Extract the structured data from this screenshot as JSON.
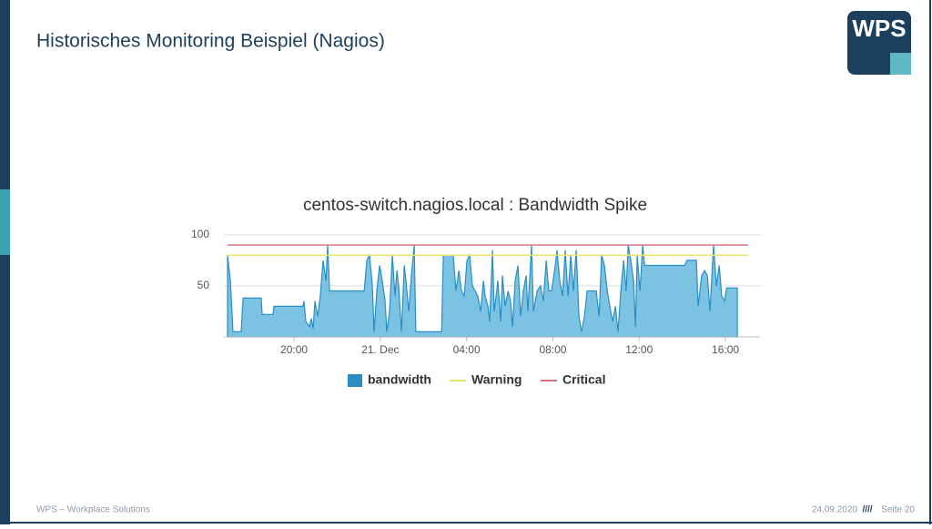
{
  "slide": {
    "title": "Historisches Monitoring Beispiel (Nagios)",
    "logo": "WPS",
    "footer_left": "WPS – Workplace Solutions",
    "date": "24.09.2020",
    "separator": "////",
    "page": "Seite 20"
  },
  "chart_data": {
    "type": "area",
    "title": "centos-switch.nagios.local : Bandwidth Spike",
    "xlim": [
      16.75,
      41.6
    ],
    "xticks": [
      {
        "value": 20,
        "label": "20:00"
      },
      {
        "value": 24,
        "label": "21. Dec"
      },
      {
        "value": 28,
        "label": "04:00"
      },
      {
        "value": 32,
        "label": "08:00"
      },
      {
        "value": 36,
        "label": "12:00"
      },
      {
        "value": 40,
        "label": "16:00"
      }
    ],
    "ylim": [
      0,
      107
    ],
    "yticks": [
      50,
      100
    ],
    "grid": true,
    "x": [
      16.92,
      17.05,
      17.17,
      17.55,
      17.64,
      18.48,
      18.52,
      19.03,
      19.07,
      20.42,
      20.46,
      20.55,
      20.72,
      20.8,
      20.89,
      20.97,
      21.1,
      21.22,
      21.35,
      21.48,
      21.56,
      21.65,
      23.25,
      23.38,
      23.5,
      23.63,
      23.71,
      23.84,
      23.97,
      24.09,
      24.22,
      24.3,
      24.43,
      24.56,
      24.68,
      24.77,
      24.85,
      24.98,
      25.11,
      25.19,
      25.32,
      25.44,
      25.57,
      25.65,
      26.84,
      26.92,
      27.38,
      27.51,
      27.64,
      27.76,
      27.89,
      28.02,
      28.14,
      28.27,
      28.4,
      28.52,
      28.65,
      28.78,
      28.86,
      28.99,
      29.07,
      29.2,
      29.28,
      29.37,
      29.45,
      29.58,
      29.66,
      29.79,
      29.92,
      30.04,
      30.13,
      30.25,
      30.38,
      30.51,
      30.63,
      30.76,
      30.84,
      31.01,
      31.1,
      31.27,
      31.43,
      31.56,
      31.69,
      31.81,
      31.94,
      32.11,
      32.19,
      32.32,
      32.45,
      32.57,
      32.7,
      32.83,
      32.95,
      33.08,
      33.21,
      33.33,
      33.46,
      33.59,
      34.01,
      34.14,
      34.26,
      34.39,
      34.52,
      34.64,
      34.77,
      34.9,
      35.02,
      35.15,
      35.28,
      35.4,
      35.49,
      35.61,
      35.74,
      35.83,
      35.91,
      36.04,
      36.16,
      36.25,
      38.1,
      38.23,
      38.65,
      38.73,
      38.9,
      39.03,
      39.16,
      39.28,
      39.45,
      39.58,
      39.71,
      39.83,
      39.96,
      40.05,
      40.55
    ],
    "series": [
      {
        "name": "bandwidth",
        "color": "#7cc3e3",
        "values": [
          80,
          55,
          5,
          5,
          38,
          38,
          22,
          22,
          30,
          30,
          35,
          15,
          10,
          18,
          8,
          35,
          20,
          40,
          75,
          55,
          90,
          45,
          45,
          75,
          80,
          50,
          5,
          45,
          70,
          55,
          35,
          5,
          25,
          80,
          40,
          65,
          50,
          5,
          70,
          55,
          25,
          60,
          90,
          5,
          5,
          80,
          80,
          45,
          65,
          45,
          40,
          75,
          80,
          50,
          45,
          40,
          25,
          55,
          40,
          30,
          15,
          85,
          25,
          40,
          55,
          15,
          60,
          30,
          45,
          35,
          10,
          55,
          70,
          20,
          45,
          60,
          25,
          90,
          25,
          45,
          50,
          35,
          75,
          45,
          45,
          70,
          85,
          55,
          40,
          85,
          40,
          80,
          45,
          85,
          20,
          5,
          20,
          45,
          45,
          20,
          80,
          70,
          45,
          30,
          15,
          30,
          5,
          45,
          75,
          45,
          90,
          75,
          55,
          10,
          80,
          45,
          90,
          70,
          70,
          75,
          75,
          30,
          60,
          65,
          60,
          25,
          90,
          50,
          70,
          40,
          35,
          48,
          48
        ]
      },
      {
        "name": "Warning",
        "color": "#ede36a",
        "value": 80
      },
      {
        "name": "Critical",
        "color": "#d9707c",
        "value": 90
      }
    ]
  }
}
